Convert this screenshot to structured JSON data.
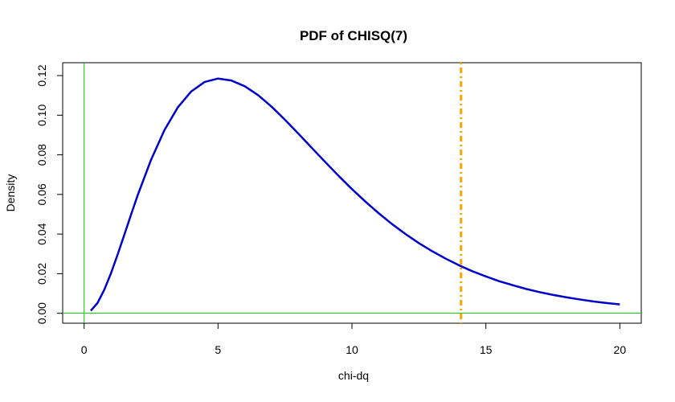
{
  "chart_data": {
    "type": "line",
    "title": "PDF of CHISQ(7)",
    "xlabel": "chi-dq",
    "ylabel": "Density",
    "xlim": [
      -0.8,
      20.8
    ],
    "ylim": [
      -0.005,
      0.1265
    ],
    "x_ticks": [
      "0",
      "5",
      "10",
      "15",
      "20"
    ],
    "y_ticks": [
      "0.00",
      "0.02",
      "0.04",
      "0.06",
      "0.08",
      "0.10",
      "0.12"
    ],
    "degrees_of_freedom": 7,
    "grid": false,
    "series": [
      {
        "x": [
          0.25,
          0.5,
          0.75,
          1,
          1.25,
          1.5,
          1.75,
          2,
          2.5,
          3,
          3.5,
          4,
          4.5,
          5,
          5.5,
          6,
          6.5,
          7,
          7.5,
          8,
          8.5,
          9,
          9.5,
          10,
          10.5,
          11,
          11.5,
          12,
          12.5,
          13,
          13.5,
          14,
          14.5,
          15,
          15.5,
          16,
          16.5,
          17,
          17.5,
          18,
          18.5,
          19,
          19.5,
          20
        ],
        "y": [
          0.0013,
          0.0052,
          0.0118,
          0.0201,
          0.0296,
          0.0396,
          0.0497,
          0.0596,
          0.0775,
          0.0925,
          0.104,
          0.112,
          0.1168,
          0.1185,
          0.1175,
          0.1146,
          0.1101,
          0.1043,
          0.0977,
          0.0907,
          0.0835,
          0.0764,
          0.0694,
          0.0627,
          0.0564,
          0.0505,
          0.045,
          0.04,
          0.0354,
          0.0313,
          0.0276,
          0.0242,
          0.0212,
          0.0186,
          0.0162,
          0.0142,
          0.0123,
          0.0107,
          0.0093,
          0.0081,
          0.007,
          0.006,
          0.0052,
          0.0045
        ],
        "color": "#0000CD"
      }
    ],
    "reference_lines": [
      {
        "orientation": "vertical",
        "x": 0,
        "color": "#00CC00",
        "style": "solid"
      },
      {
        "orientation": "horizontal",
        "y": 0,
        "color": "#00CC00",
        "style": "solid"
      },
      {
        "orientation": "vertical",
        "x": 14.07,
        "color": "#FFA500",
        "style": "dotdash"
      }
    ]
  }
}
